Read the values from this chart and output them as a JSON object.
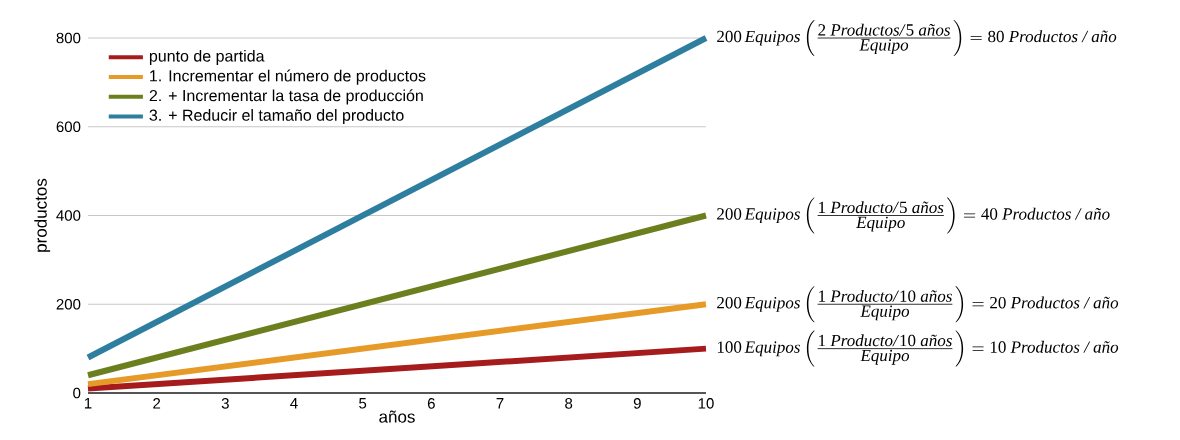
{
  "chart_data": {
    "type": "line",
    "xlabel": "años",
    "ylabel": "productos",
    "x": [
      1,
      10
    ],
    "xlim": [
      1,
      10
    ],
    "xticks": [
      1,
      2,
      3,
      4,
      5,
      6,
      7,
      8,
      9,
      10
    ],
    "ylim": [
      0,
      800
    ],
    "yticks": [
      0,
      200,
      400,
      600,
      800
    ],
    "grid": "y",
    "legend": "top left",
    "marker": "none",
    "line_style": "solid",
    "series": [
      {
        "name": "punto de partida",
        "color": "#a61c1c",
        "values": [
          10,
          100
        ]
      },
      {
        "name": "1. Incrementar el número de productos",
        "color": "#e69a28",
        "values": [
          20,
          200
        ]
      },
      {
        "name": "2. + Incrementar la tasa de producción",
        "color": "#6b7f1e",
        "values": [
          40,
          400
        ]
      },
      {
        "name": "3. + Reducir el tamaño del producto",
        "color": "#2e7ea0",
        "values": [
          80,
          800
        ]
      }
    ],
    "annotations": [
      "\\textup{200}\\,\\textit{Equipos}\\left(\\frac{\\textit{\\textup{2} Productos/\\textup{5} años}}{\\textit{Equipo}}\\right)=\\textup{80}\\ \\textit{Productos / año}",
      "\\textup{200}\\,\\textit{Equipos}\\left(\\frac{\\textit{\\textup{1} Producto/\\textup{5} años}}{\\textit{Equipo}}\\right)=\\textup{40}\\ \\textit{Productos / año}",
      "\\textup{200}\\,\\textit{Equipos}\\left(\\frac{\\textit{\\textup{1} Producto/\\textup{10} años}}{\\textit{Equipo}}\\right)=\\textup{20}\\ \\textit{Productos / año}",
      "\\textup{100}\\,\\textit{Equipos}\\left(\\frac{\\textit{\\textup{1} Producto/\\textup{10} años}}{\\textit{Equipo}}\\right)=\\textup{10}\\ \\textit{Productos / año}"
    ]
  }
}
